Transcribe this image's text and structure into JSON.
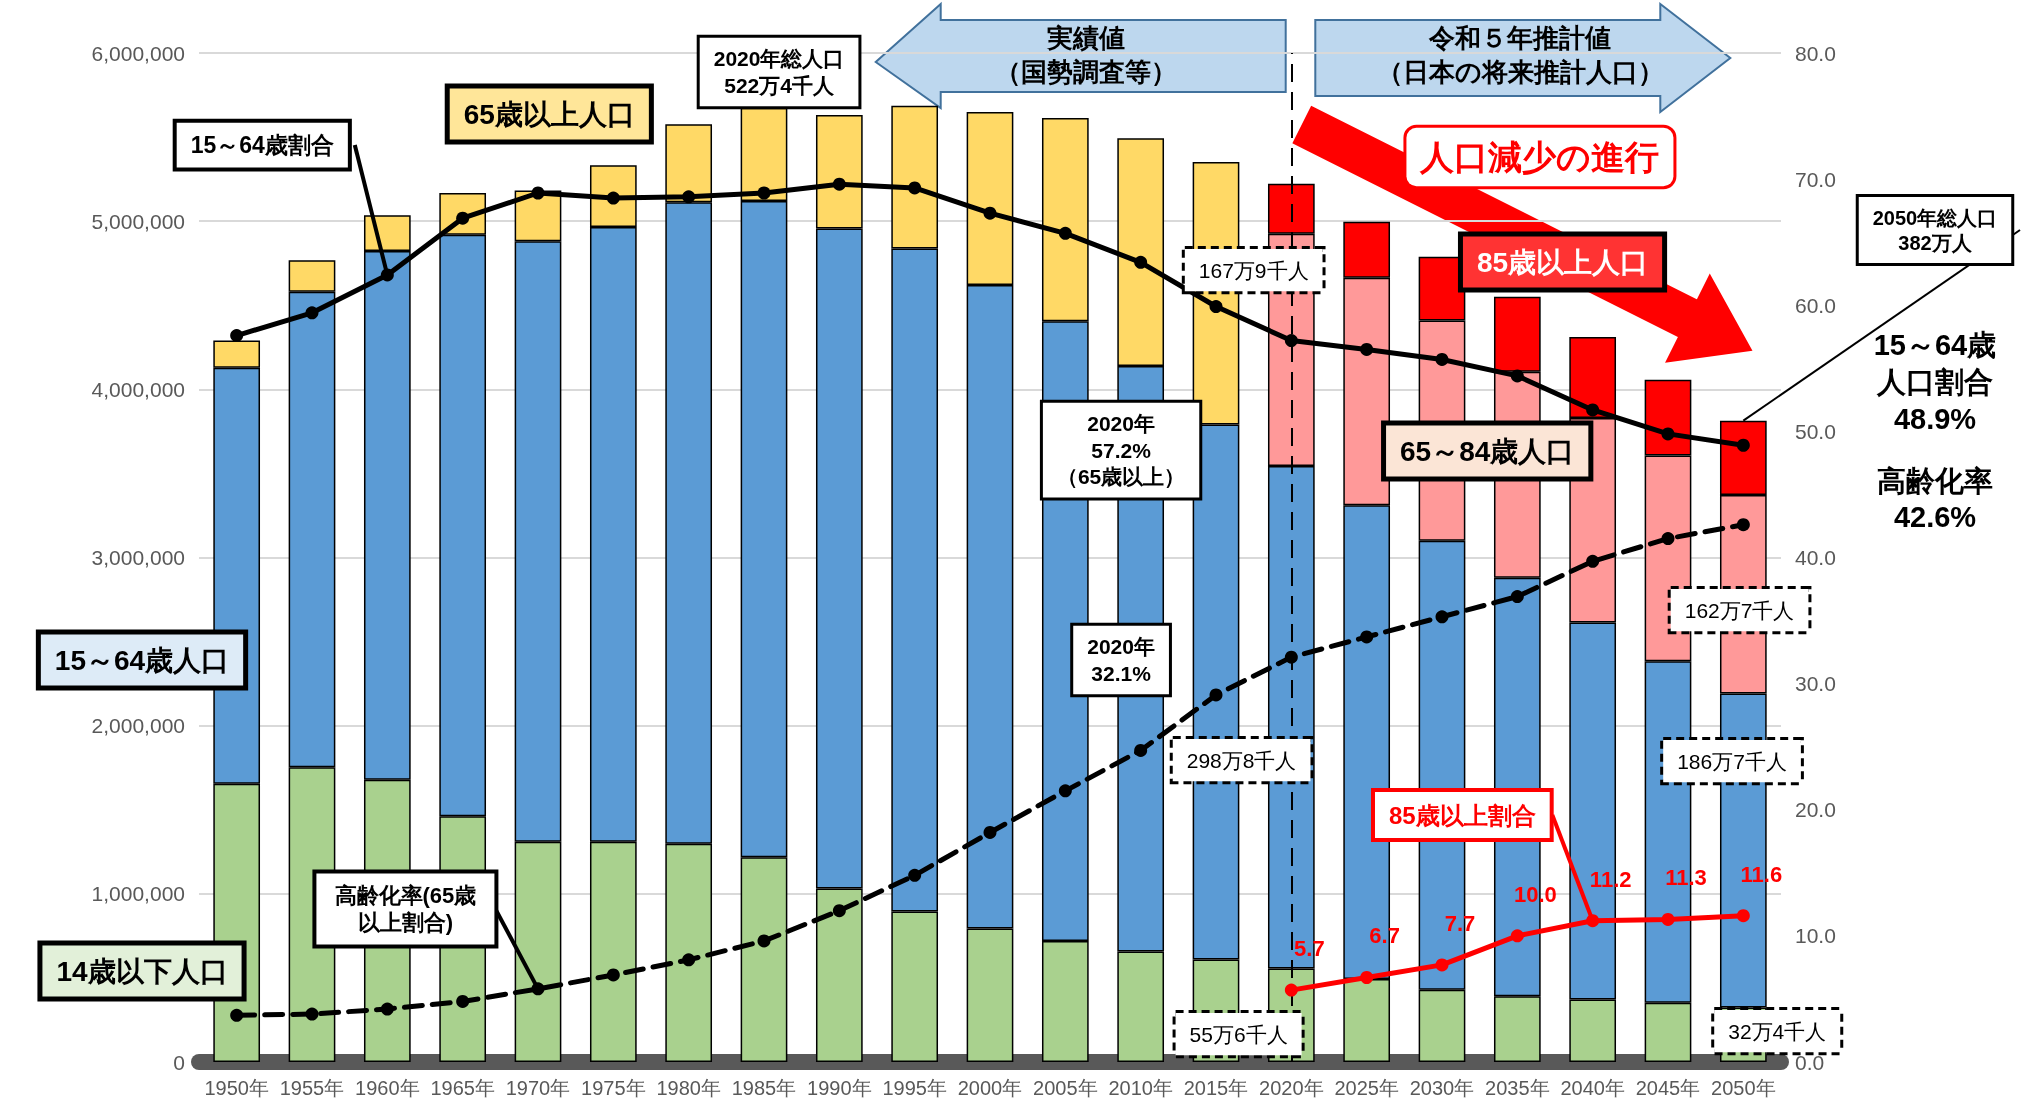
{
  "chart_data": {
    "type": "bar",
    "stacked": true,
    "legend": false,
    "grid": "y",
    "marker": "circle",
    "categories": [
      "1950年",
      "1955年",
      "1960年",
      "1965年",
      "1970年",
      "1975年",
      "1980年",
      "1985年",
      "1990年",
      "1995年",
      "2000年",
      "2005年",
      "2010年",
      "2015年",
      "2020年",
      "2025年",
      "2030年",
      "2035年",
      "2040年",
      "2045年",
      "2050年"
    ],
    "ylim": [
      0,
      6000000
    ],
    "yticks": [
      {
        "value": 0,
        "label": "0"
      },
      {
        "value": 1000000,
        "label": "1,000,000"
      },
      {
        "value": 2000000,
        "label": "2,000,000"
      },
      {
        "value": 3000000,
        "label": "3,000,000"
      },
      {
        "value": 4000000,
        "label": "4,000,000"
      },
      {
        "value": 5000000,
        "label": "5,000,000"
      },
      {
        "value": 6000000,
        "label": "6,000,000"
      }
    ],
    "y2lim": [
      0,
      80
    ],
    "y2ticks": [
      {
        "value": 0,
        "label": "0.0"
      },
      {
        "value": 10,
        "label": "10.0"
      },
      {
        "value": 20,
        "label": "20.0"
      },
      {
        "value": 30,
        "label": "30.0"
      },
      {
        "value": 40,
        "label": "40.0"
      },
      {
        "value": 50,
        "label": "50.0"
      },
      {
        "value": 60,
        "label": "60.0"
      },
      {
        "value": 70,
        "label": "70.0"
      },
      {
        "value": 80,
        "label": "80.0"
      }
    ],
    "series": [
      {
        "name": "14歳以下人口",
        "color": "#a9d18e",
        "values": [
          1655000,
          1752000,
          1678000,
          1461000,
          1310000,
          1310000,
          1298000,
          1217000,
          1031000,
          895000,
          794000,
          720000,
          657000,
          610000,
          556000,
          493000,
          430000,
          391000,
          372000,
          352000,
          324000
        ]
      },
      {
        "name": "15～64歳人口",
        "color": "#5b9bd5",
        "values": [
          2473000,
          2829000,
          3144000,
          3458000,
          3570000,
          3655000,
          3814000,
          3903000,
          3926000,
          3942000,
          3826000,
          3685000,
          3482000,
          3181000,
          2988000,
          2817000,
          2670000,
          2489000,
          2241000,
          2031000,
          1867000
        ]
      },
      {
        "name": "65歳以上人口",
        "color": "#ffd966",
        "values": [
          162000,
          186000,
          213000,
          248000,
          302000,
          368000,
          464000,
          554000,
          675000,
          849000,
          1029000,
          1209000,
          1354000,
          1561000,
          null,
          null,
          null,
          null,
          null,
          null,
          null
        ]
      },
      {
        "name": "65～84歳人口",
        "color": "#ff9999",
        "values": [
          null,
          null,
          null,
          null,
          null,
          null,
          null,
          null,
          null,
          null,
          null,
          null,
          null,
          null,
          1381000,
          1354000,
          1309000,
          1224000,
          1217000,
          1224000,
          1180000
        ]
      },
      {
        "name": "85歳以上人口",
        "color": "#ff0000",
        "values": [
          null,
          null,
          null,
          null,
          null,
          null,
          null,
          null,
          null,
          null,
          null,
          null,
          null,
          null,
          298000,
          332000,
          380000,
          446000,
          481000,
          450000,
          442000
        ]
      },
      {
        "name": "15～64歳割合",
        "type": "line",
        "axis": "y2",
        "color": "#000000",
        "line_style": "solid",
        "values": [
          57.6,
          59.4,
          62.4,
          66.9,
          68.9,
          68.5,
          68.6,
          68.9,
          69.6,
          69.3,
          67.3,
          65.7,
          63.4,
          59.9,
          57.2,
          56.5,
          55.7,
          54.4,
          51.7,
          49.8,
          48.9
        ]
      },
      {
        "name": "高齢化率(65歳以上割合)",
        "type": "line",
        "axis": "y2",
        "color": "#000000",
        "line_style": "dashed",
        "values": [
          3.7,
          3.8,
          4.2,
          4.8,
          5.8,
          6.9,
          8.1,
          9.6,
          12.0,
          14.8,
          18.2,
          21.5,
          24.7,
          29.1,
          32.1,
          33.7,
          35.3,
          36.9,
          39.7,
          41.5,
          42.6
        ]
      },
      {
        "name": "85歳以上割合",
        "type": "line",
        "axis": "y2",
        "color": "#ff0000",
        "line_style": "solid",
        "values": [
          null,
          null,
          null,
          null,
          null,
          null,
          null,
          null,
          null,
          null,
          null,
          null,
          null,
          null,
          5.7,
          6.7,
          7.7,
          10.0,
          11.2,
          11.3,
          11.6
        ],
        "value_labels": [
          null,
          null,
          null,
          null,
          null,
          null,
          null,
          null,
          null,
          null,
          null,
          null,
          null,
          null,
          "5.7",
          "6.7",
          "7.7",
          "10.0",
          "11.2",
          "11.3",
          "11.6"
        ]
      }
    ],
    "ref_lines": [
      {
        "axis": "x",
        "value": "2020年",
        "color": "#000000",
        "line_style": "dashed"
      }
    ],
    "annotations": [
      "実績値",
      "（国勢調査等）",
      "令和５年推計値",
      "（日本の将来推計人口）",
      "人口減少の進行",
      "2020年総人口\n522万4千人",
      "167万9千人",
      "2020年\n57.2%\n（65歳以上）",
      "2020年\n32.1%",
      "298万8千人",
      "55万6千人",
      {
        "text": "2050年総人口\n382万人",
        "x": "2050年",
        "y": 3814000
      },
      "15～64歳",
      "人口割合",
      "48.9%",
      "高齢化率\n42.6%",
      "162万7千人",
      "186万7千人",
      "32万4千人"
    ]
  }
}
